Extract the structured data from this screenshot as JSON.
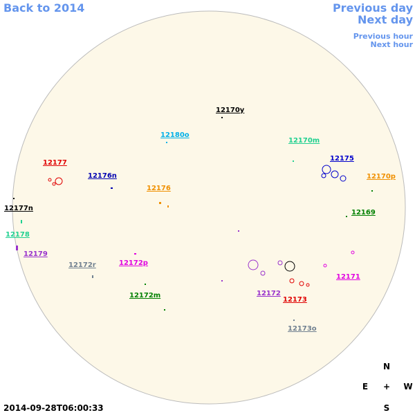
{
  "nav": {
    "back": "Back to 2014",
    "previous_day": "Previous day",
    "next_day": "Next day",
    "previous_hour": "Previous hour",
    "next_hour": "Next hour"
  },
  "regions": [
    {
      "label": "12170y",
      "color": "#000000"
    },
    {
      "label": "12180o",
      "color": "#00b0e8"
    },
    {
      "label": "12170m",
      "color": "#20d090"
    },
    {
      "label": "12175",
      "color": "#0000cc"
    },
    {
      "label": "12177",
      "color": "#e00000"
    },
    {
      "label": "12176n",
      "color": "#0000b0"
    },
    {
      "label": "12170p",
      "color": "#f09000"
    },
    {
      "label": "12176",
      "color": "#f09000"
    },
    {
      "label": "12177n",
      "color": "#000000"
    },
    {
      "label": "12169",
      "color": "#008000"
    },
    {
      "label": "12178",
      "color": "#20d090"
    },
    {
      "label": "12179",
      "color": "#9932cc"
    },
    {
      "label": "12172r",
      "color": "#708090"
    },
    {
      "label": "12172p",
      "color": "#e000e0"
    },
    {
      "label": "12171",
      "color": "#e000e0"
    },
    {
      "label": "12172m",
      "color": "#008000"
    },
    {
      "label": "12172",
      "color": "#9932cc"
    },
    {
      "label": "12173",
      "color": "#e00000"
    },
    {
      "label": "12173o",
      "color": "#708090"
    }
  ],
  "timestamp": "2014-09-28T06:00:33",
  "compass": {
    "north": "N",
    "east": "E",
    "center": "+",
    "west": "W",
    "south": "S"
  }
}
